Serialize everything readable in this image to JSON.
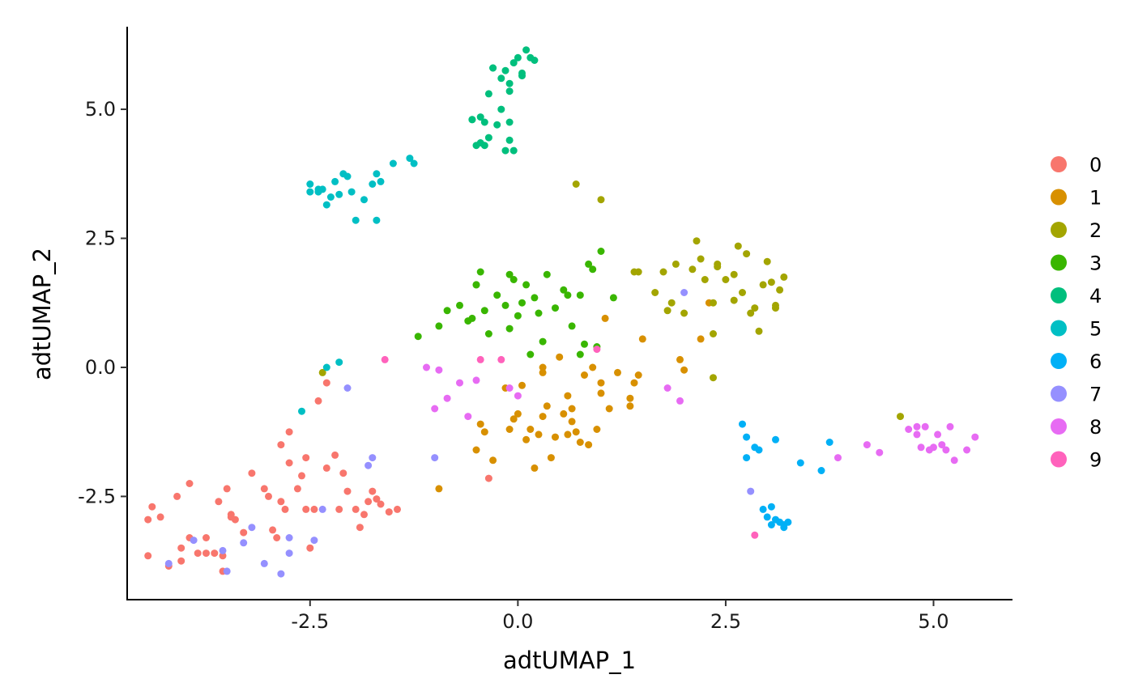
{
  "chart_data": {
    "type": "scatter",
    "xlabel": "adtUMAP_1",
    "ylabel": "adtUMAP_2",
    "xlim": [
      -4.7,
      5.95
    ],
    "ylim": [
      -4.5,
      6.6
    ],
    "x_ticks": [
      -2.5,
      0.0,
      2.5,
      5.0
    ],
    "x_tick_labels": [
      "-2.5",
      "0.0",
      "2.5",
      "5.0"
    ],
    "y_ticks": [
      -2.5,
      0.0,
      2.5,
      5.0
    ],
    "y_tick_labels": [
      "-2.5",
      "0.0",
      "2.5",
      "5.0"
    ],
    "grid": false,
    "legend_position": "right",
    "series": [
      {
        "name": "0",
        "color": "#F8766D",
        "points": [
          [
            -4.45,
            -2.95
          ],
          [
            -4.4,
            -2.7
          ],
          [
            -4.3,
            -2.9
          ],
          [
            -4.2,
            -3.85
          ],
          [
            -4.1,
            -2.5
          ],
          [
            -4.05,
            -3.75
          ],
          [
            -3.95,
            -2.25
          ],
          [
            -3.85,
            -3.6
          ],
          [
            -3.75,
            -3.3
          ],
          [
            -3.65,
            -3.6
          ],
          [
            -3.6,
            -2.6
          ],
          [
            -3.55,
            -3.65
          ],
          [
            -3.5,
            -2.35
          ],
          [
            -3.45,
            -2.85
          ],
          [
            -3.4,
            -2.95
          ],
          [
            -3.3,
            -3.2
          ],
          [
            -3.2,
            -2.05
          ],
          [
            -3.05,
            -2.35
          ],
          [
            -2.95,
            -3.15
          ],
          [
            -2.85,
            -2.6
          ],
          [
            -2.75,
            -1.85
          ],
          [
            -2.65,
            -2.35
          ],
          [
            -2.55,
            -1.75
          ],
          [
            -2.5,
            -3.5
          ],
          [
            -2.45,
            -2.75
          ],
          [
            -2.4,
            -0.65
          ],
          [
            -2.3,
            -0.3
          ],
          [
            -2.2,
            -1.7
          ],
          [
            -2.15,
            -2.75
          ],
          [
            -2.05,
            -2.4
          ],
          [
            -1.95,
            -2.75
          ],
          [
            -1.85,
            -2.85
          ],
          [
            -1.75,
            -2.4
          ],
          [
            -1.65,
            -2.65
          ],
          [
            -1.55,
            -2.8
          ],
          [
            -1.45,
            -2.75
          ],
          [
            -2.85,
            -1.5
          ],
          [
            -2.75,
            -1.25
          ],
          [
            -2.6,
            -2.1
          ],
          [
            -2.3,
            -1.95
          ],
          [
            -2.1,
            -2.05
          ],
          [
            -1.9,
            -3.1
          ],
          [
            -1.8,
            -2.6
          ],
          [
            -2.9,
            -3.3
          ],
          [
            -2.8,
            -2.75
          ],
          [
            -3.75,
            -3.6
          ],
          [
            -4.45,
            -3.65
          ],
          [
            -4.05,
            -3.5
          ],
          [
            -3.95,
            -3.3
          ],
          [
            -3.45,
            -2.9
          ],
          [
            -3.55,
            -3.95
          ],
          [
            -3.0,
            -2.5
          ],
          [
            -2.55,
            -2.75
          ],
          [
            -1.7,
            -2.55
          ],
          [
            -0.35,
            -2.15
          ]
        ]
      },
      {
        "name": "1",
        "color": "#D89000",
        "points": [
          [
            -0.95,
            -2.35
          ],
          [
            -0.5,
            -1.6
          ],
          [
            -0.45,
            -1.1
          ],
          [
            -0.4,
            -1.25
          ],
          [
            -0.3,
            -1.8
          ],
          [
            -0.15,
            -0.4
          ],
          [
            -0.1,
            -1.2
          ],
          [
            -0.05,
            -1.0
          ],
          [
            0.0,
            -0.9
          ],
          [
            0.05,
            -0.35
          ],
          [
            0.1,
            -1.4
          ],
          [
            0.15,
            -1.2
          ],
          [
            0.2,
            -1.95
          ],
          [
            0.25,
            -1.3
          ],
          [
            0.3,
            -0.95
          ],
          [
            0.35,
            -0.75
          ],
          [
            0.4,
            -1.75
          ],
          [
            0.45,
            -1.35
          ],
          [
            0.5,
            0.2
          ],
          [
            0.55,
            -0.9
          ],
          [
            0.6,
            -0.55
          ],
          [
            0.65,
            -1.05
          ],
          [
            0.7,
            -1.25
          ],
          [
            0.75,
            -1.45
          ],
          [
            0.85,
            -1.5
          ],
          [
            0.9,
            0.0
          ],
          [
            0.95,
            -1.2
          ],
          [
            1.0,
            -0.3
          ],
          [
            1.05,
            0.95
          ],
          [
            1.1,
            -0.8
          ],
          [
            1.2,
            -0.1
          ],
          [
            1.35,
            -0.6
          ],
          [
            1.4,
            -0.3
          ],
          [
            1.45,
            -0.15
          ],
          [
            1.5,
            0.55
          ],
          [
            1.95,
            0.15
          ],
          [
            2.0,
            -0.05
          ],
          [
            2.2,
            0.55
          ],
          [
            2.3,
            1.25
          ],
          [
            0.3,
            -0.1
          ],
          [
            0.6,
            -1.3
          ],
          [
            0.65,
            -0.8
          ],
          [
            0.8,
            -0.15
          ],
          [
            1.0,
            -0.5
          ],
          [
            1.35,
            -0.75
          ],
          [
            0.3,
            0.0
          ]
        ]
      },
      {
        "name": "2",
        "color": "#A3A500",
        "points": [
          [
            -2.35,
            -0.1
          ],
          [
            0.7,
            3.55
          ],
          [
            1.0,
            3.25
          ],
          [
            1.65,
            1.45
          ],
          [
            1.75,
            1.85
          ],
          [
            1.85,
            1.25
          ],
          [
            1.9,
            2.0
          ],
          [
            2.0,
            1.05
          ],
          [
            2.1,
            1.9
          ],
          [
            2.15,
            2.45
          ],
          [
            2.2,
            2.1
          ],
          [
            2.25,
            1.7
          ],
          [
            2.35,
            1.25
          ],
          [
            2.4,
            1.95
          ],
          [
            2.5,
            1.7
          ],
          [
            2.6,
            1.3
          ],
          [
            2.65,
            2.35
          ],
          [
            2.7,
            1.45
          ],
          [
            2.75,
            2.2
          ],
          [
            2.8,
            1.05
          ],
          [
            2.85,
            1.15
          ],
          [
            2.9,
            0.7
          ],
          [
            2.95,
            1.6
          ],
          [
            3.0,
            2.05
          ],
          [
            3.05,
            1.65
          ],
          [
            3.1,
            1.2
          ],
          [
            3.15,
            1.5
          ],
          [
            3.2,
            1.75
          ],
          [
            2.6,
            1.8
          ],
          [
            2.35,
            -0.2
          ],
          [
            2.35,
            0.65
          ],
          [
            1.45,
            1.85
          ],
          [
            1.4,
            1.85
          ],
          [
            1.8,
            1.1
          ],
          [
            2.4,
            2.0
          ],
          [
            3.1,
            1.15
          ],
          [
            4.6,
            -0.95
          ]
        ]
      },
      {
        "name": "3",
        "color": "#39B600",
        "points": [
          [
            -1.2,
            0.6
          ],
          [
            -0.95,
            0.8
          ],
          [
            -0.85,
            1.1
          ],
          [
            -0.7,
            1.2
          ],
          [
            -0.6,
            0.9
          ],
          [
            -0.5,
            1.6
          ],
          [
            -0.45,
            1.85
          ],
          [
            -0.4,
            1.1
          ],
          [
            -0.35,
            0.65
          ],
          [
            -0.25,
            1.4
          ],
          [
            -0.15,
            1.2
          ],
          [
            -0.1,
            1.8
          ],
          [
            -0.05,
            1.7
          ],
          [
            0.0,
            1.0
          ],
          [
            0.05,
            1.25
          ],
          [
            0.1,
            1.6
          ],
          [
            0.15,
            0.25
          ],
          [
            0.2,
            1.35
          ],
          [
            0.25,
            1.05
          ],
          [
            0.3,
            0.5
          ],
          [
            0.35,
            1.8
          ],
          [
            0.45,
            1.15
          ],
          [
            0.55,
            1.5
          ],
          [
            0.65,
            0.8
          ],
          [
            0.75,
            1.4
          ],
          [
            0.8,
            0.45
          ],
          [
            0.85,
            2.0
          ],
          [
            0.9,
            1.9
          ],
          [
            0.95,
            0.4
          ],
          [
            1.0,
            2.25
          ],
          [
            1.15,
            1.35
          ],
          [
            -0.5,
            1.6
          ],
          [
            -0.55,
            0.95
          ],
          [
            -0.1,
            0.75
          ],
          [
            0.75,
            0.25
          ],
          [
            0.6,
            1.4
          ]
        ]
      },
      {
        "name": "4",
        "color": "#00BF7D",
        "points": [
          [
            -0.55,
            4.8
          ],
          [
            -0.5,
            4.3
          ],
          [
            -0.45,
            4.85
          ],
          [
            -0.4,
            4.3
          ],
          [
            -0.35,
            4.45
          ],
          [
            -0.3,
            5.8
          ],
          [
            -0.25,
            4.7
          ],
          [
            -0.2,
            5.6
          ],
          [
            -0.15,
            4.2
          ],
          [
            -0.1,
            5.5
          ],
          [
            -0.05,
            5.9
          ],
          [
            0.0,
            6.0
          ],
          [
            0.05,
            5.7
          ],
          [
            0.1,
            6.15
          ],
          [
            0.15,
            6.0
          ],
          [
            0.2,
            5.95
          ],
          [
            -0.35,
            5.3
          ],
          [
            -0.2,
            5.0
          ],
          [
            -0.15,
            5.75
          ],
          [
            -0.1,
            5.35
          ],
          [
            -0.1,
            4.75
          ],
          [
            -0.05,
            4.2
          ],
          [
            0.05,
            5.65
          ],
          [
            -0.45,
            4.35
          ],
          [
            -0.4,
            4.75
          ],
          [
            -0.55,
            4.8
          ],
          [
            -0.1,
            4.4
          ],
          [
            -0.3,
            5.8
          ]
        ]
      },
      {
        "name": "5",
        "color": "#00BFC4",
        "points": [
          [
            -2.5,
            3.55
          ],
          [
            -2.5,
            3.4
          ],
          [
            -2.4,
            3.4
          ],
          [
            -2.35,
            3.45
          ],
          [
            -2.3,
            3.15
          ],
          [
            -2.25,
            3.3
          ],
          [
            -2.2,
            3.6
          ],
          [
            -2.15,
            3.35
          ],
          [
            -2.1,
            3.75
          ],
          [
            -2.05,
            3.7
          ],
          [
            -2.0,
            3.4
          ],
          [
            -1.95,
            2.85
          ],
          [
            -1.85,
            3.25
          ],
          [
            -1.75,
            3.55
          ],
          [
            -1.7,
            3.75
          ],
          [
            -1.65,
            3.6
          ],
          [
            -1.5,
            3.95
          ],
          [
            -1.3,
            4.05
          ],
          [
            -1.25,
            3.95
          ],
          [
            -1.7,
            2.85
          ],
          [
            -2.3,
            0.0
          ],
          [
            -2.15,
            0.1
          ],
          [
            -2.6,
            -0.85
          ],
          [
            -2.4,
            3.45
          ]
        ]
      },
      {
        "name": "6",
        "color": "#00B0F6",
        "points": [
          [
            2.7,
            -1.1
          ],
          [
            2.75,
            -1.35
          ],
          [
            2.75,
            -1.75
          ],
          [
            2.85,
            -1.55
          ],
          [
            2.9,
            -1.6
          ],
          [
            2.95,
            -2.75
          ],
          [
            3.0,
            -2.9
          ],
          [
            3.05,
            -2.7
          ],
          [
            3.1,
            -2.95
          ],
          [
            3.15,
            -3.0
          ],
          [
            3.2,
            -3.05
          ],
          [
            3.25,
            -3.0
          ],
          [
            3.1,
            -1.4
          ],
          [
            3.4,
            -1.85
          ],
          [
            3.65,
            -2.0
          ],
          [
            3.75,
            -1.45
          ],
          [
            3.05,
            -3.05
          ],
          [
            3.2,
            -3.1
          ]
        ]
      },
      {
        "name": "7",
        "color": "#9590FF",
        "points": [
          [
            -4.2,
            -3.8
          ],
          [
            -3.9,
            -3.35
          ],
          [
            -3.55,
            -3.55
          ],
          [
            -3.5,
            -3.95
          ],
          [
            -3.3,
            -3.4
          ],
          [
            -3.2,
            -3.1
          ],
          [
            -3.05,
            -3.8
          ],
          [
            -2.85,
            -4.0
          ],
          [
            -2.75,
            -3.3
          ],
          [
            -2.75,
            -3.6
          ],
          [
            -2.45,
            -3.35
          ],
          [
            -2.35,
            -2.75
          ],
          [
            -1.8,
            -1.9
          ],
          [
            -1.75,
            -1.75
          ],
          [
            -1.0,
            -1.75
          ],
          [
            -2.05,
            -0.4
          ],
          [
            2.0,
            1.45
          ],
          [
            2.8,
            -2.4
          ]
        ]
      },
      {
        "name": "8",
        "color": "#E76BF3",
        "points": [
          [
            -1.1,
            0.0
          ],
          [
            -1.0,
            -0.8
          ],
          [
            -0.95,
            -0.05
          ],
          [
            -0.85,
            -0.6
          ],
          [
            -0.7,
            -0.3
          ],
          [
            -0.6,
            -0.95
          ],
          [
            -0.5,
            -0.25
          ],
          [
            -0.1,
            -0.4
          ],
          [
            0.0,
            -0.55
          ],
          [
            1.8,
            -0.4
          ],
          [
            1.95,
            -0.65
          ],
          [
            3.85,
            -1.75
          ],
          [
            4.2,
            -1.5
          ],
          [
            4.35,
            -1.65
          ],
          [
            4.7,
            -1.2
          ],
          [
            4.8,
            -1.15
          ],
          [
            4.8,
            -1.3
          ],
          [
            4.85,
            -1.55
          ],
          [
            4.9,
            -1.15
          ],
          [
            4.95,
            -1.6
          ],
          [
            5.0,
            -1.55
          ],
          [
            5.05,
            -1.3
          ],
          [
            5.1,
            -1.5
          ],
          [
            5.15,
            -1.6
          ],
          [
            5.2,
            -1.15
          ],
          [
            5.25,
            -1.8
          ],
          [
            5.4,
            -1.6
          ],
          [
            5.5,
            -1.35
          ]
        ]
      },
      {
        "name": "9",
        "color": "#FF62BC",
        "points": [
          [
            -1.6,
            0.15
          ],
          [
            -0.45,
            0.15
          ],
          [
            -0.2,
            0.15
          ],
          [
            0.95,
            0.35
          ],
          [
            2.85,
            -3.25
          ]
        ]
      }
    ]
  }
}
